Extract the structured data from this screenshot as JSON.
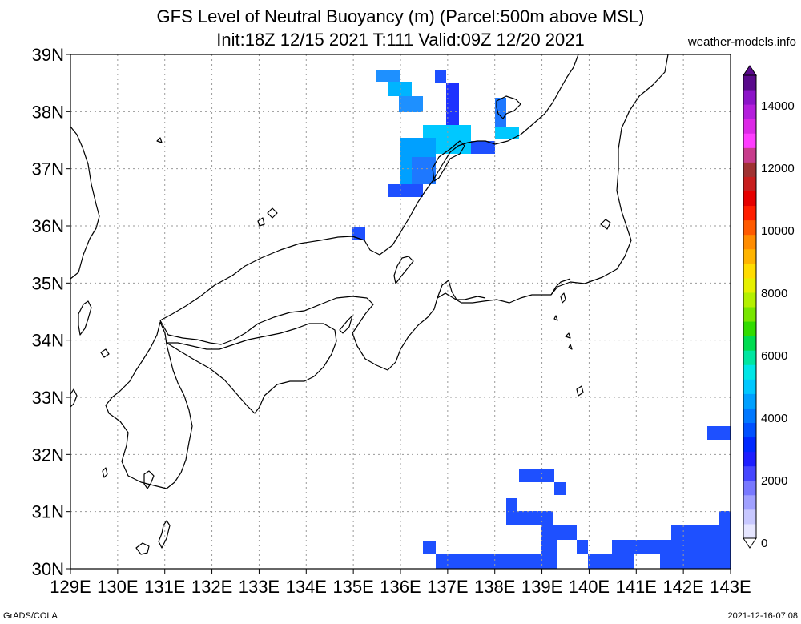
{
  "header": {
    "title_line1": "GFS Level of Neutral Buoyancy (m) (Parcel:500m above MSL)",
    "title_line2": "Init:18Z 12/15 2021 T:111 Valid:09Z 12/20 2021",
    "site": "weather-models.info"
  },
  "footer": {
    "left": "GrADS/COLA",
    "right": "2021-12-16-07:08"
  },
  "map": {
    "lon_labels": [
      "129E",
      "130E",
      "131E",
      "132E",
      "133E",
      "134E",
      "135E",
      "136E",
      "137E",
      "138E",
      "139E",
      "140E",
      "141E",
      "142E",
      "143E"
    ],
    "lat_labels": [
      "39N",
      "38N",
      "37N",
      "36N",
      "35N",
      "34N",
      "33N",
      "32N",
      "31N",
      "30N"
    ],
    "grid": true,
    "coastline_color": "#000000",
    "grid_color": "#9a9a9a"
  },
  "colorbar": {
    "ticks": [
      "14000",
      "12000",
      "10000",
      "8000",
      "6000",
      "4000",
      "2000",
      "0"
    ],
    "colors": [
      "#e6e6ff",
      "#c8c8ff",
      "#a0a0ff",
      "#7878ff",
      "#4646ff",
      "#1e1eff",
      "#0028ff",
      "#0050ff",
      "#0078ff",
      "#00a0ff",
      "#00c8ff",
      "#00e6e6",
      "#00e6a0",
      "#00dc50",
      "#32dc00",
      "#78e600",
      "#b4f000",
      "#e6f000",
      "#ffdc00",
      "#ffb400",
      "#ff8c00",
      "#ff5a00",
      "#ff1e00",
      "#e60000",
      "#c81e1e",
      "#a03232",
      "#c83c8c",
      "#ff3cff",
      "#dc28e6",
      "#b41edc",
      "#8c14c8",
      "#5a0a8c"
    ]
  }
}
